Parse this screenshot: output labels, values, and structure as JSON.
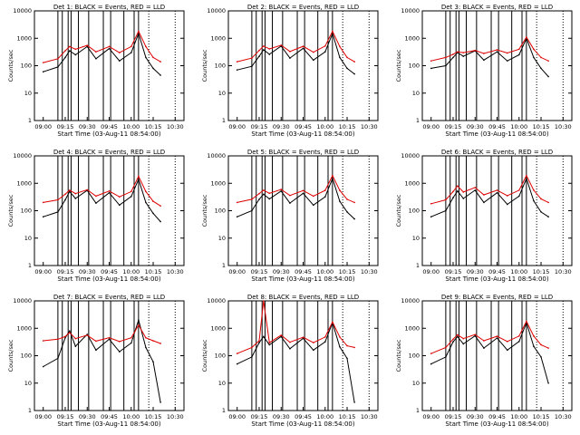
{
  "figure": {
    "title_template": "Det {n}: BLACK = Events, RED = LLD",
    "note": ""
  },
  "colors": {
    "events": "#000000",
    "lld": "#dd0000",
    "axes": "#000000"
  },
  "chart_data": [
    {
      "type": "line",
      "title": "Det 1: BLACK = Events, RED = LLD",
      "ylabel": "Counts/sec",
      "xlabel": "Start Time (03-Aug-11 08:54:00)",
      "scale": "log",
      "ylim": [
        1,
        10000
      ],
      "xticks": [
        "09:00",
        "09:15",
        "09:30",
        "09:45",
        "10:00",
        "10:15",
        "10:30"
      ],
      "yticks": [
        "1",
        "10",
        "100",
        "1000",
        "10000"
      ],
      "x": [
        "09:00",
        "09:10",
        "09:15",
        "09:18",
        "09:22",
        "09:30",
        "09:36",
        "09:45",
        "09:52",
        "10:00",
        "10:05",
        "10:10",
        "10:15",
        "10:20"
      ],
      "series": [
        {
          "name": "Events",
          "color": "#000000",
          "values": [
            60,
            90,
            200,
            350,
            250,
            500,
            180,
            420,
            150,
            300,
            1500,
            200,
            80,
            45
          ]
        },
        {
          "name": "LLD",
          "color": "#dd0000",
          "values": [
            130,
            180,
            350,
            500,
            400,
            550,
            320,
            500,
            300,
            500,
            1800,
            500,
            200,
            140
          ]
        }
      ]
    },
    {
      "type": "line",
      "title": "Det 2: BLACK = Events, RED = LLD",
      "ylabel": "Counts/sec",
      "xlabel": "Start Time (03-Aug-11 08:54:00)",
      "scale": "log",
      "ylim": [
        1,
        10000
      ],
      "xticks": [
        "09:00",
        "09:15",
        "09:30",
        "09:45",
        "10:00",
        "10:15",
        "10:30"
      ],
      "yticks": [
        "1",
        "10",
        "100",
        "1000",
        "10000"
      ],
      "x": [
        "09:00",
        "09:10",
        "09:15",
        "09:18",
        "09:22",
        "09:30",
        "09:36",
        "09:45",
        "09:52",
        "10:00",
        "10:05",
        "10:10",
        "10:15",
        "10:20"
      ],
      "series": [
        {
          "name": "Events",
          "color": "#000000",
          "values": [
            70,
            95,
            220,
            380,
            260,
            520,
            190,
            430,
            160,
            320,
            1500,
            200,
            80,
            50
          ]
        },
        {
          "name": "LLD",
          "color": "#dd0000",
          "values": [
            140,
            190,
            360,
            520,
            410,
            560,
            330,
            510,
            310,
            520,
            1800,
            500,
            200,
            140
          ]
        }
      ]
    },
    {
      "type": "line",
      "title": "Det 3: BLACK = Events, RED = LLD",
      "ylabel": "Counts/sec",
      "xlabel": "Start Time (03-Aug-11 08:54:00)",
      "scale": "log",
      "ylim": [
        1,
        10000
      ],
      "xticks": [
        "09:00",
        "09:15",
        "09:30",
        "09:45",
        "10:00",
        "10:15",
        "10:30"
      ],
      "yticks": [
        "1",
        "10",
        "100",
        "1000",
        "10000"
      ],
      "x": [
        "09:00",
        "09:10",
        "09:15",
        "09:18",
        "09:22",
        "09:30",
        "09:36",
        "09:45",
        "09:52",
        "10:00",
        "10:05",
        "10:10",
        "10:15",
        "10:20"
      ],
      "series": [
        {
          "name": "Events",
          "color": "#000000",
          "values": [
            80,
            100,
            200,
            300,
            220,
            350,
            160,
            320,
            150,
            250,
            1000,
            200,
            80,
            40
          ]
        },
        {
          "name": "LLD",
          "color": "#dd0000",
          "values": [
            150,
            200,
            260,
            320,
            300,
            360,
            280,
            380,
            290,
            400,
            1100,
            400,
            200,
            150
          ]
        }
      ]
    },
    {
      "type": "line",
      "title": "Det 4: BLACK = Events, RED = LLD",
      "ylabel": "Counts/sec",
      "xlabel": "Start Time (03-Aug-11 08:54:00)",
      "scale": "log",
      "ylim": [
        1,
        10000
      ],
      "xticks": [
        "09:00",
        "09:15",
        "09:30",
        "09:45",
        "10:00",
        "10:15",
        "10:30"
      ],
      "yticks": [
        "1",
        "10",
        "100",
        "1000",
        "10000"
      ],
      "x": [
        "09:00",
        "09:10",
        "09:15",
        "09:18",
        "09:22",
        "09:30",
        "09:36",
        "09:45",
        "09:52",
        "10:00",
        "10:05",
        "10:10",
        "10:15",
        "10:20"
      ],
      "series": [
        {
          "name": "Events",
          "color": "#000000",
          "values": [
            60,
            90,
            250,
            500,
            280,
            550,
            190,
            450,
            160,
            330,
            1400,
            200,
            80,
            40
          ]
        },
        {
          "name": "LLD",
          "color": "#dd0000",
          "values": [
            200,
            250,
            400,
            560,
            420,
            580,
            340,
            520,
            320,
            500,
            1800,
            500,
            220,
            150
          ]
        }
      ]
    },
    {
      "type": "line",
      "title": "Det 5: BLACK = Events, RED = LLD",
      "ylabel": "Counts/sec",
      "xlabel": "Start Time (03-Aug-11 08:54:00)",
      "scale": "log",
      "ylim": [
        1,
        10000
      ],
      "xticks": [
        "09:00",
        "09:15",
        "09:30",
        "09:45",
        "10:00",
        "10:15",
        "10:30"
      ],
      "yticks": [
        "1",
        "10",
        "100",
        "1000",
        "10000"
      ],
      "x": [
        "09:00",
        "09:10",
        "09:15",
        "09:18",
        "09:22",
        "09:30",
        "09:36",
        "09:45",
        "09:52",
        "10:00",
        "10:05",
        "10:10",
        "10:15",
        "10:20"
      ],
      "series": [
        {
          "name": "Events",
          "color": "#000000",
          "values": [
            60,
            100,
            260,
            400,
            270,
            520,
            190,
            430,
            160,
            320,
            1500,
            220,
            90,
            50
          ]
        },
        {
          "name": "LLD",
          "color": "#dd0000",
          "values": [
            200,
            260,
            420,
            560,
            430,
            600,
            360,
            540,
            340,
            550,
            1900,
            550,
            260,
            200
          ]
        }
      ]
    },
    {
      "type": "line",
      "title": "Det 6: BLACK = Events, RED = LLD",
      "ylabel": "Counts/sec",
      "xlabel": "Start Time (03-Aug-11 08:54:00)",
      "scale": "log",
      "ylim": [
        1,
        10000
      ],
      "xticks": [
        "09:00",
        "09:15",
        "09:30",
        "09:45",
        "10:00",
        "10:15",
        "10:30"
      ],
      "yticks": [
        "1",
        "10",
        "100",
        "1000",
        "10000"
      ],
      "x": [
        "09:00",
        "09:10",
        "09:15",
        "09:18",
        "09:22",
        "09:30",
        "09:36",
        "09:45",
        "09:52",
        "10:00",
        "10:05",
        "10:10",
        "10:15",
        "10:20"
      ],
      "series": [
        {
          "name": "Events",
          "color": "#000000",
          "values": [
            60,
            100,
            300,
            520,
            280,
            560,
            200,
            450,
            170,
            340,
            1500,
            230,
            90,
            60
          ]
        },
        {
          "name": "LLD",
          "color": "#dd0000",
          "values": [
            180,
            250,
            500,
            800,
            480,
            700,
            380,
            560,
            350,
            560,
            1900,
            560,
            270,
            200
          ]
        }
      ]
    },
    {
      "type": "line",
      "title": "Det 7: BLACK = Events, RED = LLD",
      "ylabel": "Counts/sec",
      "xlabel": "Start Time (03-Aug-11 08:54:00)",
      "scale": "log",
      "ylim": [
        1,
        10000
      ],
      "xticks": [
        "09:00",
        "09:15",
        "09:30",
        "09:45",
        "10:00",
        "10:15",
        "10:30"
      ],
      "yticks": [
        "1",
        "10",
        "100",
        "1000",
        "10000"
      ],
      "x": [
        "09:00",
        "09:10",
        "09:15",
        "09:18",
        "09:22",
        "09:30",
        "09:36",
        "09:45",
        "09:52",
        "10:00",
        "10:05",
        "10:10",
        "10:15",
        "10:20"
      ],
      "series": [
        {
          "name": "Events",
          "color": "#000000",
          "values": [
            40,
            80,
            450,
            800,
            220,
            600,
            160,
            400,
            140,
            290,
            2000,
            200,
            60,
            2
          ]
        },
        {
          "name": "LLD",
          "color": "#dd0000",
          "values": [
            350,
            400,
            500,
            700,
            420,
            560,
            340,
            450,
            330,
            450,
            1300,
            450,
            350,
            280
          ]
        }
      ]
    },
    {
      "type": "line",
      "title": "Det 8: BLACK = Events, RED = LLD",
      "ylabel": "Counts/sec",
      "xlabel": "Start Time (03-Aug-11 08:54:00)",
      "scale": "log",
      "ylim": [
        1,
        10000
      ],
      "xticks": [
        "09:00",
        "09:15",
        "09:30",
        "09:45",
        "10:00",
        "10:15",
        "10:30"
      ],
      "yticks": [
        "1",
        "10",
        "100",
        "1000",
        "10000"
      ],
      "x": [
        "09:00",
        "09:10",
        "09:15",
        "09:18",
        "09:22",
        "09:30",
        "09:36",
        "09:45",
        "09:52",
        "10:00",
        "10:05",
        "10:10",
        "10:15",
        "10:20"
      ],
      "series": [
        {
          "name": "Events",
          "color": "#000000",
          "values": [
            50,
            90,
            300,
            500,
            250,
            500,
            180,
            430,
            160,
            320,
            1600,
            210,
            80,
            2
          ]
        },
        {
          "name": "LLD",
          "color": "#dd0000",
          "values": [
            120,
            200,
            350,
            10000,
            300,
            560,
            310,
            470,
            300,
            480,
            1700,
            480,
            230,
            200
          ]
        }
      ]
    },
    {
      "type": "line",
      "title": "Det 9: BLACK = Events, RED = LLD",
      "ylabel": "Counts/sec",
      "xlabel": "Start Time (03-Aug-11 08:54:00)",
      "scale": "log",
      "ylim": [
        1,
        10000
      ],
      "xticks": [
        "09:00",
        "09:15",
        "09:30",
        "09:45",
        "10:00",
        "10:15",
        "10:30"
      ],
      "yticks": [
        "1",
        "10",
        "100",
        "1000",
        "10000"
      ],
      "x": [
        "09:00",
        "09:10",
        "09:15",
        "09:18",
        "09:22",
        "09:30",
        "09:36",
        "09:45",
        "09:52",
        "10:00",
        "10:05",
        "10:10",
        "10:15",
        "10:20"
      ],
      "series": [
        {
          "name": "Events",
          "color": "#000000",
          "values": [
            50,
            90,
            320,
            500,
            270,
            530,
            190,
            440,
            160,
            330,
            1600,
            220,
            90,
            10
          ]
        },
        {
          "name": "LLD",
          "color": "#dd0000",
          "values": [
            120,
            200,
            400,
            580,
            420,
            590,
            350,
            510,
            330,
            520,
            1800,
            520,
            250,
            190
          ]
        }
      ]
    }
  ]
}
